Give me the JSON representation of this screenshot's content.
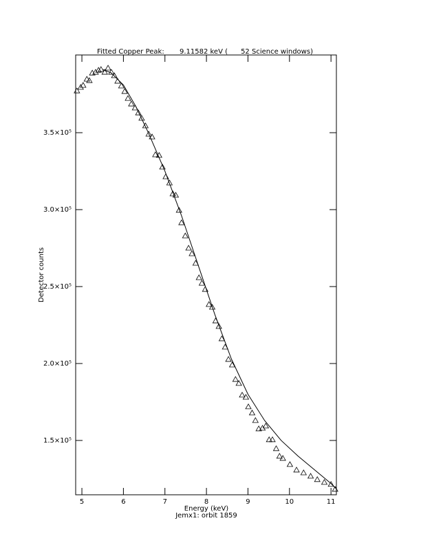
{
  "chart_data": {
    "type": "scatter",
    "title": "Fitted Copper Peak:       9.11582 keV (      52 Science windows)",
    "x_label": "Energy (keV)",
    "subtitle": "Jemx1: orbit 1859",
    "y_label": "Detector counts",
    "xlim": [
      4.85,
      11.13
    ],
    "ylim": [
      114700,
      400500
    ],
    "xticks": [
      5,
      6,
      7,
      8,
      9,
      10,
      11
    ],
    "yticks": [
      {
        "value": 150000,
        "label": "1.5×10⁵"
      },
      {
        "value": 200000,
        "label": "2.0×10⁵"
      },
      {
        "value": 250000,
        "label": "2.5×10⁵"
      },
      {
        "value": 300000,
        "label": "3.0×10⁵"
      },
      {
        "value": 350000,
        "label": "3.5×10⁵"
      }
    ],
    "color": "#000000",
    "series": [
      {
        "style": "triangle",
        "x": [
          4.88,
          4.97,
          5.03,
          5.12,
          5.18,
          5.25,
          5.33,
          5.4,
          5.46,
          5.55,
          5.63,
          5.71,
          5.78,
          5.86,
          5.95,
          6.03,
          6.11,
          6.19,
          6.28,
          6.36,
          6.44,
          6.53,
          6.61,
          6.69,
          6.77,
          6.86,
          6.94,
          7.02,
          7.11,
          7.19,
          7.26,
          7.34,
          7.4,
          7.49,
          7.57,
          7.65,
          7.74,
          7.82,
          7.89,
          7.97,
          8.06,
          8.14,
          8.22,
          8.3,
          8.37,
          8.45,
          8.53,
          8.62,
          8.7,
          8.78,
          8.86,
          8.95,
          9.01,
          9.1,
          9.18,
          9.26,
          9.35,
          9.43,
          9.51,
          9.59,
          9.68,
          9.76,
          9.84,
          10.01,
          10.17,
          10.34,
          10.51,
          10.67,
          10.84,
          11.0,
          11.1
        ],
        "values": [
          377200,
          379500,
          380800,
          384800,
          383900,
          388800,
          389300,
          390600,
          391100,
          389300,
          392000,
          389300,
          387100,
          383500,
          380400,
          376800,
          372300,
          368700,
          366100,
          362900,
          359400,
          354500,
          349100,
          347300,
          335700,
          335300,
          327700,
          321400,
          317400,
          310300,
          309400,
          299600,
          291500,
          283000,
          275000,
          271400,
          265200,
          255800,
          252200,
          248200,
          238400,
          236600,
          227700,
          224100,
          216100,
          210700,
          202700,
          199100,
          189700,
          187100,
          179500,
          178100,
          171900,
          167900,
          163000,
          157600,
          158000,
          159400,
          150500,
          150500,
          144700,
          139800,
          138400,
          134400,
          130800,
          129000,
          126800,
          124600,
          122800,
          121500,
          118300
        ]
      },
      {
        "style": "line",
        "x": [
          5.5,
          5.7,
          6.0,
          6.3,
          6.6,
          7.0,
          7.4,
          7.8,
          8.2,
          8.6,
          9.0,
          9.4,
          9.8,
          10.2,
          10.6,
          11.0,
          11.13
        ],
        "values": [
          391000,
          389000,
          381000,
          367000,
          350000,
          325000,
          296000,
          264000,
          232000,
          203000,
          180000,
          163000,
          150000,
          140000,
          131000,
          122000,
          118500
        ]
      }
    ]
  }
}
